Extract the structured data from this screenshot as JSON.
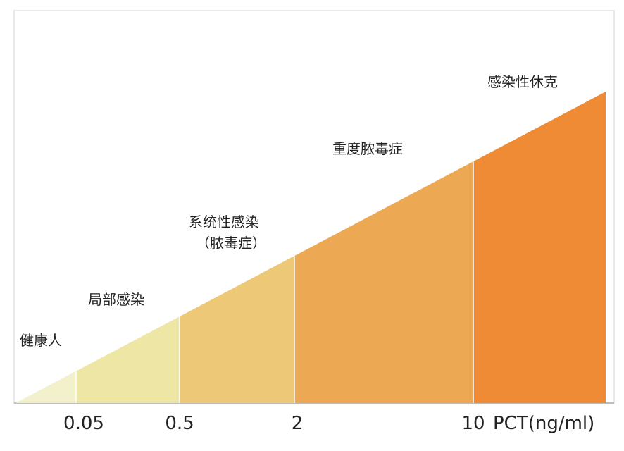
{
  "stages": [
    {
      "label": [
        "健康人"
      ],
      "color": "#f3f0cc"
    },
    {
      "label": [
        "局部感染"
      ],
      "color": "#eee6a4"
    },
    {
      "label": [
        "系统性感染",
        "（脓毒症）"
      ],
      "color": "#ecc877"
    },
    {
      "label": [
        "重度脓毒症"
      ],
      "color": "#eca852"
    },
    {
      "label": [
        "感染性休克"
      ],
      "color": "#ef8a35"
    }
  ],
  "thresholds": [
    0.05,
    0.5,
    2,
    10
  ],
  "axis_label": "PCT(ng/ml)"
}
